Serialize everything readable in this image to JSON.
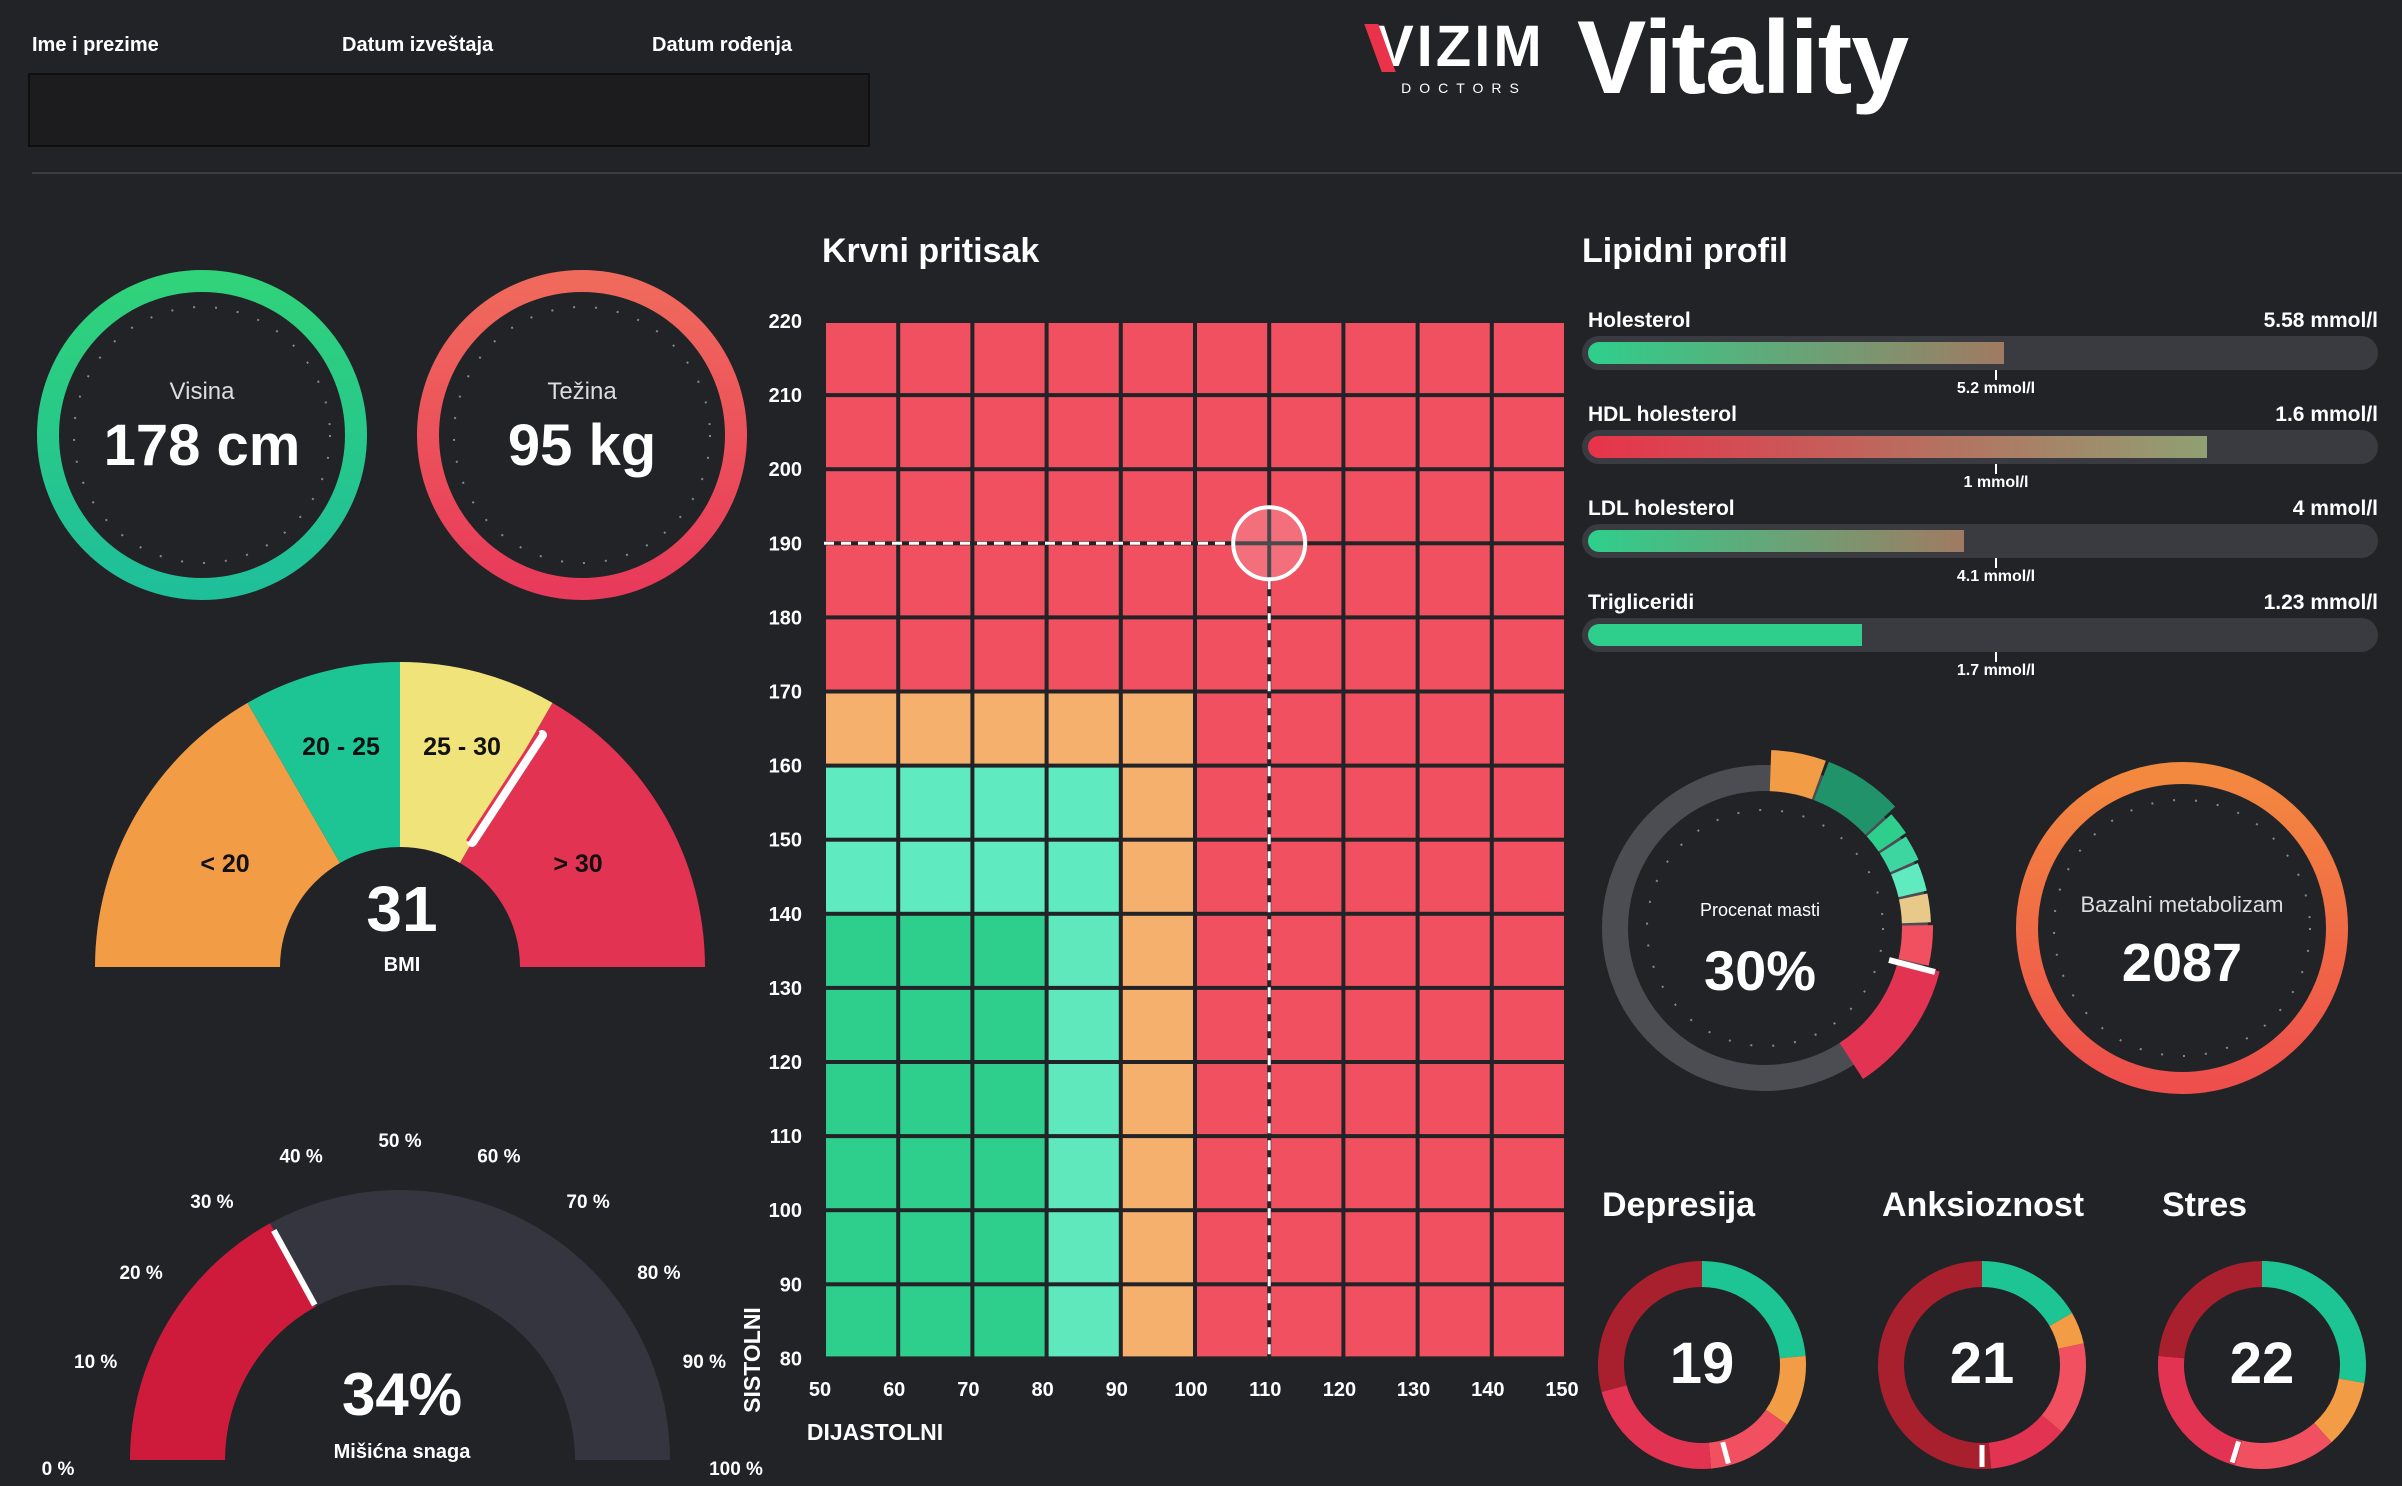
{
  "header": {
    "labels": [
      "Ime i prezime",
      "Datum izveštaja",
      "Datum rođenja"
    ],
    "logo_word": "VIZIM",
    "logo_sub": "DOCTORS",
    "product": "Vitality"
  },
  "vitals": {
    "height": {
      "label": "Visina",
      "value": "178 cm"
    },
    "weight": {
      "label": "Težina",
      "value": "95 kg"
    }
  },
  "bmi": {
    "value": "31",
    "label": "BMI",
    "segments": [
      "< 20",
      "20 - 25",
      "25 - 30",
      "> 30"
    ]
  },
  "muscle": {
    "value": "34%",
    "label": "Mišićna snaga",
    "percent": 34,
    "ticks": [
      "0 %",
      "10 %",
      "20 %",
      "30 %",
      "40 %",
      "50 %",
      "60 %",
      "70 %",
      "80 %",
      "90 %",
      "100 %"
    ]
  },
  "blood_pressure": {
    "title": "Krvni pritisak",
    "ylabel": "SISTOLNI",
    "xlabel": "DIJASTOLNI",
    "y_ticks": [
      "220",
      "210",
      "200",
      "190",
      "180",
      "170",
      "160",
      "150",
      "140",
      "130",
      "120",
      "110",
      "100",
      "90",
      "80"
    ],
    "x_ticks": [
      "50",
      "60",
      "70",
      "80",
      "90",
      "100",
      "110",
      "120",
      "130",
      "140",
      "150"
    ],
    "systolic": 190,
    "diastolic": 110
  },
  "lipid": {
    "title": "Lipidni profil",
    "items": [
      {
        "name": "Holesterol",
        "value": "5.58 mmol/l",
        "ref": "5.2 mmol/l",
        "fill": 0.53
      },
      {
        "name": "HDL holesterol",
        "value": "1.6 mmol/l",
        "ref": "1 mmol/l",
        "fill": 0.79
      },
      {
        "name": "LDL holesterol",
        "value": "4 mmol/l",
        "ref": "4.1 mmol/l",
        "fill": 0.48
      },
      {
        "name": "Trigliceridi",
        "value": "1.23 mmol/l",
        "ref": "1.7 mmol/l",
        "fill": 0.35
      }
    ]
  },
  "body_fat": {
    "label": "Procenat masti",
    "value": "30%"
  },
  "bmr": {
    "label": "Bazalni metabolizam",
    "value": "2087"
  },
  "mental": [
    {
      "title": "Depresija",
      "value": "19"
    },
    {
      "title": "Anksioznost",
      "value": "21"
    },
    {
      "title": "Stres",
      "value": "22"
    }
  ],
  "colors": {
    "green": "#2ecf8c",
    "red": "#f0505f",
    "orange": "#f4a04a",
    "yellow": "#f0e27a",
    "dark_red": "#a8202e",
    "bg": "#222327"
  }
}
